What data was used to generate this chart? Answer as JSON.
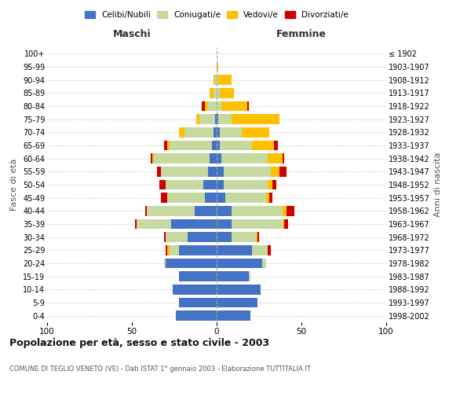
{
  "age_groups": [
    "0-4",
    "5-9",
    "10-14",
    "15-19",
    "20-24",
    "25-29",
    "30-34",
    "35-39",
    "40-44",
    "45-49",
    "50-54",
    "55-59",
    "60-64",
    "65-69",
    "70-74",
    "75-79",
    "80-84",
    "85-89",
    "90-94",
    "95-99",
    "100+"
  ],
  "birth_years": [
    "1998-2002",
    "1993-1997",
    "1988-1992",
    "1983-1987",
    "1978-1982",
    "1973-1977",
    "1968-1972",
    "1963-1967",
    "1958-1962",
    "1953-1957",
    "1948-1952",
    "1943-1947",
    "1938-1942",
    "1933-1937",
    "1928-1932",
    "1923-1927",
    "1918-1922",
    "1913-1917",
    "1908-1912",
    "1903-1907",
    "≤ 1902"
  ],
  "male": {
    "celibi": [
      24,
      22,
      26,
      22,
      30,
      22,
      17,
      27,
      13,
      7,
      8,
      5,
      4,
      3,
      2,
      1,
      0,
      0,
      0,
      0,
      0
    ],
    "coniugati": [
      0,
      0,
      0,
      0,
      1,
      6,
      13,
      20,
      28,
      22,
      22,
      28,
      33,
      25,
      17,
      9,
      5,
      2,
      1,
      0,
      0
    ],
    "vedovi": [
      0,
      0,
      0,
      0,
      0,
      1,
      0,
      0,
      0,
      0,
      0,
      0,
      1,
      1,
      3,
      2,
      2,
      2,
      1,
      0,
      0
    ],
    "divorziati": [
      0,
      0,
      0,
      0,
      0,
      1,
      1,
      1,
      1,
      4,
      4,
      2,
      1,
      2,
      0,
      0,
      2,
      0,
      0,
      0,
      0
    ]
  },
  "female": {
    "nubili": [
      20,
      24,
      26,
      19,
      27,
      21,
      9,
      9,
      9,
      5,
      4,
      4,
      3,
      2,
      2,
      1,
      0,
      0,
      0,
      0,
      0
    ],
    "coniugate": [
      0,
      0,
      0,
      1,
      2,
      9,
      14,
      30,
      30,
      24,
      26,
      28,
      27,
      19,
      13,
      8,
      3,
      2,
      1,
      0,
      0
    ],
    "vedove": [
      0,
      0,
      0,
      0,
      0,
      0,
      1,
      1,
      2,
      2,
      3,
      5,
      9,
      13,
      16,
      28,
      15,
      8,
      8,
      1,
      0
    ],
    "divorziate": [
      0,
      0,
      0,
      0,
      0,
      2,
      1,
      2,
      5,
      2,
      2,
      4,
      1,
      2,
      0,
      0,
      1,
      0,
      0,
      0,
      0
    ]
  },
  "colors": {
    "celibi": "#4472c4",
    "coniugati": "#c5d9a0",
    "vedovi": "#ffc000",
    "divorziati": "#cc0000"
  },
  "title": "Popolazione per età, sesso e stato civile - 2003",
  "subtitle": "COMUNE DI TEGLIO VENETO (VE) - Dati ISTAT 1° gennaio 2003 - Elaborazione TUTTITALIA.IT",
  "ylabel_left": "Fasce di età",
  "ylabel_right": "Anni di nascita",
  "xlabel_left": "Maschi",
  "xlabel_right": "Femmine",
  "xlim": 100,
  "bg_color": "#ffffff",
  "grid_color": "#cccccc",
  "legend_labels": [
    "Celibi/Nubili",
    "Coniugati/e",
    "Vedovi/e",
    "Divorziati/e"
  ]
}
